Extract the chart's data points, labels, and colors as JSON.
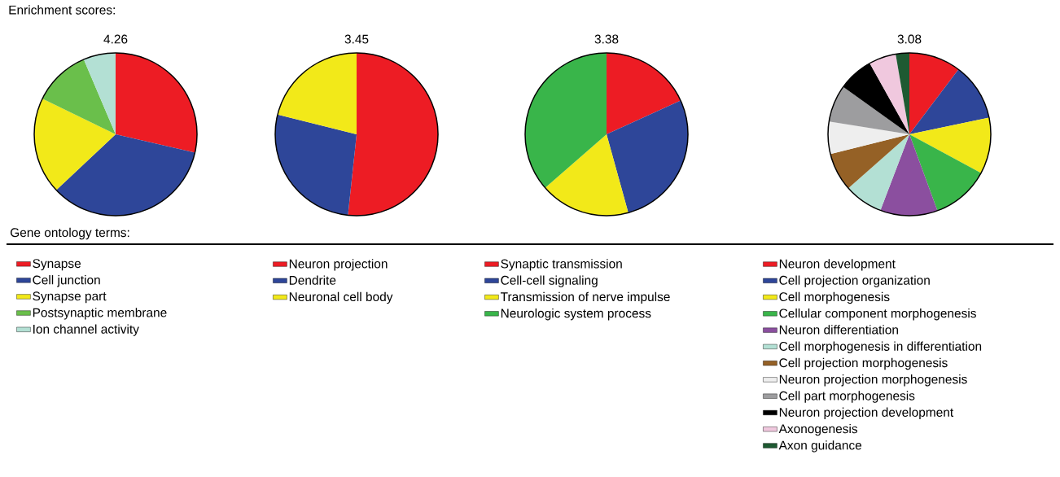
{
  "chart_data": [
    {
      "type": "pie",
      "title": "4.26",
      "annotations": [
        "Enrichment scores:"
      ],
      "legend_title": "Gene ontology terms:",
      "legend": "bottom",
      "categories": [
        "Synapse",
        "Cell junction",
        "Synapse part",
        "Postsynaptic membrane",
        "Ion channel activity"
      ],
      "values": [
        28.6,
        34.4,
        19.2,
        11.4,
        6.4
      ],
      "colors": [
        "#ed1c24",
        "#2e4699",
        "#f2e919",
        "#6abf4b",
        "#b3e0d4"
      ]
    },
    {
      "type": "pie",
      "title": "3.45",
      "legend": "bottom",
      "categories": [
        "Neuron projection",
        "Dendrite",
        "Neuronal cell body"
      ],
      "values": [
        51.7,
        27.2,
        21.1
      ],
      "colors": [
        "#ed1c24",
        "#2e4699",
        "#f2e919"
      ]
    },
    {
      "type": "pie",
      "title": "3.38",
      "legend": "bottom",
      "categories": [
        "Synaptic transmission",
        "Cell-cell signaling",
        "Transmission of nerve impulse",
        "Neurologic system process"
      ],
      "values": [
        18.2,
        27.5,
        17.9,
        36.4
      ],
      "colors": [
        "#ed1c24",
        "#2e4699",
        "#f2e919",
        "#39b54a"
      ]
    },
    {
      "type": "pie",
      "title": "3.08",
      "legend": "bottom",
      "categories": [
        "Neuron development",
        "Cell projection organization",
        "Cell morphogenesis",
        "Cellular component morphogenesis",
        "Neuron differentiation",
        "Cell morphogenesis in differentiation",
        "Cell projection morphogenesis",
        "Neuron projection morphogenesis",
        "Cell part morphogenesis",
        "Neuron projection development",
        "Axonogenesis",
        "Axon guidance"
      ],
      "values": [
        10.3,
        11.4,
        11.2,
        11.5,
        11.4,
        7.7,
        7.6,
        6.4,
        7.4,
        7.0,
        5.4,
        2.7
      ],
      "colors": [
        "#ed1c24",
        "#2e4699",
        "#f2e919",
        "#39b54a",
        "#8b4f9f",
        "#b3e0d4",
        "#956126",
        "#eeeeee",
        "#9d9d9f",
        "#000000",
        "#f0c8de",
        "#1e5a32"
      ]
    }
  ]
}
